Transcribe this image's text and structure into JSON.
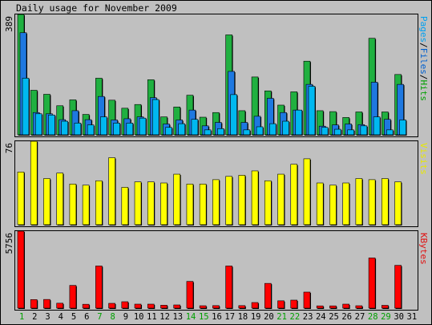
{
  "chart_data": {
    "type": "bar",
    "title": "Daily usage for November 2009",
    "days": [
      "1",
      "2",
      "3",
      "4",
      "5",
      "6",
      "7",
      "8",
      "9",
      "10",
      "11",
      "12",
      "13",
      "14",
      "15",
      "16",
      "17",
      "18",
      "19",
      "20",
      "21",
      "22",
      "23",
      "24",
      "25",
      "26",
      "27",
      "28",
      "29",
      "30",
      "31"
    ],
    "weekend_days": [
      "1",
      "7",
      "8",
      "14",
      "15",
      "21",
      "22",
      "28",
      "29"
    ],
    "panels": [
      {
        "id": "hits",
        "axis_max_label": "389",
        "axis_max": 389,
        "legend": [
          {
            "text": "Pages",
            "color": "#00a0f0"
          },
          {
            "text": "/",
            "color": "#000000"
          },
          {
            "text": "Files",
            "color": "#0060d0"
          },
          {
            "text": "/",
            "color": "#000000"
          },
          {
            "text": "Hits",
            "color": "#00a000"
          }
        ],
        "series": [
          {
            "name": "Hits",
            "color": "#20b040",
            "values": [
              389,
              144,
              131,
              94,
              113,
              66,
              183,
              112,
              86,
              98,
              178,
              58,
              90,
              128,
              57,
              72,
              323,
              78,
              187,
              142,
              96,
              139,
              238,
              78,
              75,
              56,
              74,
              312,
              74,
              195,
              0
            ]
          },
          {
            "name": "Files",
            "color": "#1e78e0",
            "values": [
              330,
              72,
              68,
              49,
              78,
              49,
              124,
              48,
              52,
              58,
              120,
              35,
              48,
              80,
              29,
              40,
              205,
              40,
              60,
              118,
              72,
              80,
              163,
              28,
              32,
              35,
              33,
              170,
              50,
              163,
              0
            ]
          },
          {
            "name": "Pages",
            "color": "#00b8f0",
            "values": [
              183,
              68,
              64,
              44,
              38,
              32,
              58,
              38,
              38,
              54,
              114,
              24,
              36,
              50,
              16,
              20,
              130,
              16,
              26,
              36,
              44,
              80,
              157,
              24,
              18,
              16,
              29,
              58,
              16,
              48,
              0
            ]
          }
        ]
      },
      {
        "id": "visits",
        "axis_max_label": "76",
        "axis_max": 76,
        "legend": [
          {
            "text": "Visits",
            "color": "#e8e800"
          }
        ],
        "series": [
          {
            "name": "Visits",
            "color": "#ffff00",
            "values": [
              48,
              76,
              42,
              47,
              37,
              36,
              40,
              61,
              34,
              39,
              39,
              38,
              46,
              37,
              37,
              41,
              44,
              45,
              49,
              40,
              46,
              55,
              60,
              38,
              36,
              38,
              42,
              41,
              42,
              39,
              0
            ]
          }
        ]
      },
      {
        "id": "kbytes",
        "axis_max_label": "5756",
        "axis_max": 5756,
        "legend": [
          {
            "text": "KBytes",
            "color": "#e01010"
          }
        ],
        "series": [
          {
            "name": "KBytes",
            "color": "#ff0000",
            "values": [
              5756,
              640,
              650,
              370,
              1700,
              290,
              3150,
              360,
              480,
              300,
              300,
              220,
              240,
              2000,
              180,
              190,
              3150,
              190,
              420,
              1850,
              550,
              600,
              1200,
              170,
              170,
              300,
              180,
              3750,
              210,
              3200,
              0
            ]
          }
        ]
      }
    ]
  }
}
